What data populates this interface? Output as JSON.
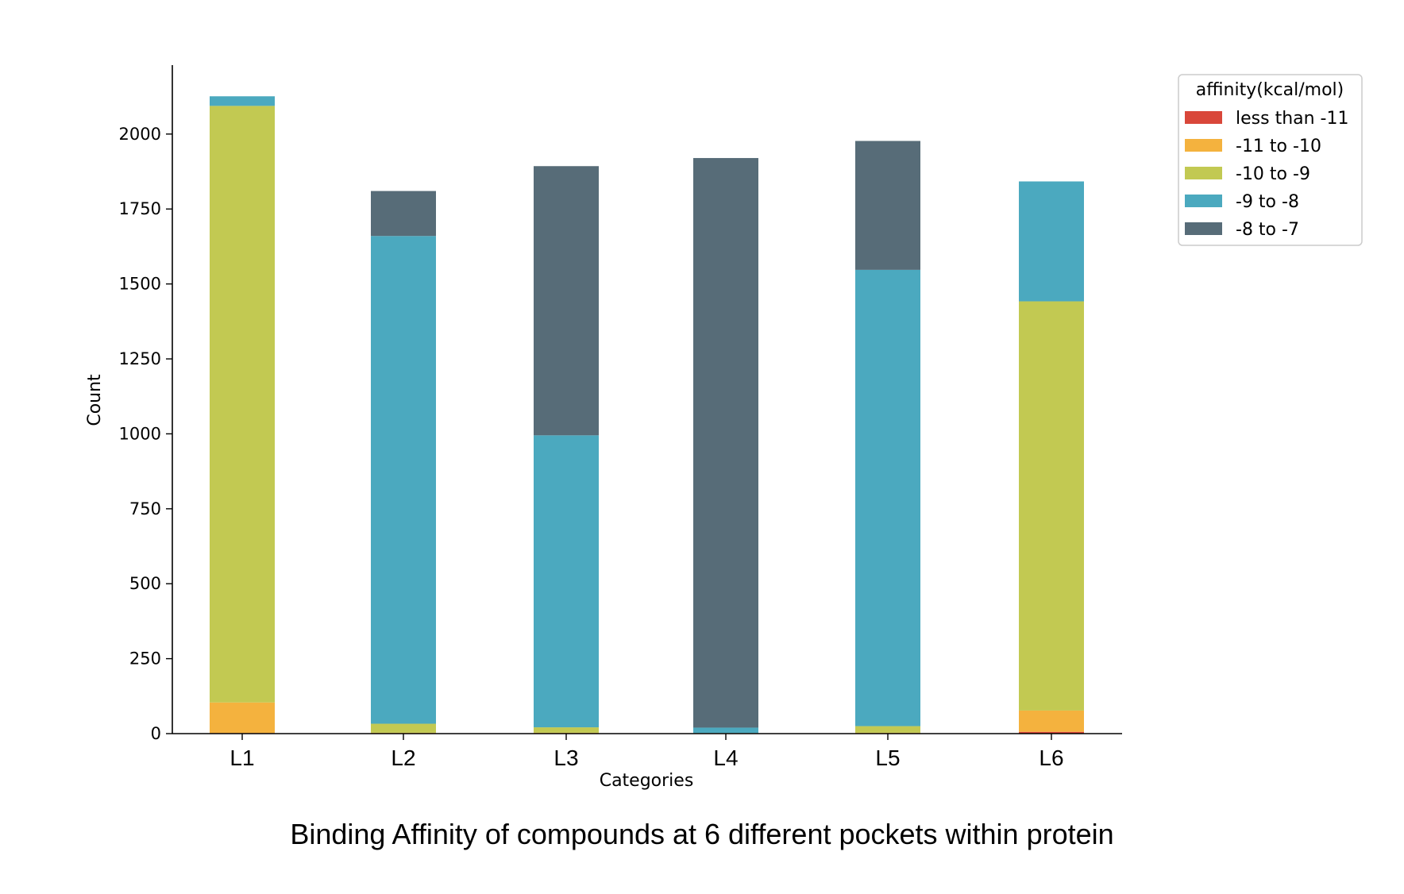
{
  "caption": "Binding Affinity of compounds at 6 different pockets within protein",
  "chart_data": {
    "type": "bar",
    "stacked": true,
    "categories": [
      "L1",
      "L2",
      "L3",
      "L4",
      "L5",
      "L6"
    ],
    "xlabel": "Categories",
    "ylabel": "Count",
    "ylim": [
      0,
      2230
    ],
    "yticks": [
      0,
      250,
      500,
      750,
      1000,
      1250,
      1500,
      1750,
      2000
    ],
    "legend": {
      "title": "affinity(kcal/mol)",
      "placement": "top-right outside"
    },
    "series": [
      {
        "name": "less than -11",
        "color": "#d9473a",
        "values": [
          2,
          1,
          1,
          0,
          1,
          6
        ]
      },
      {
        "name": "-11 to -10",
        "color": "#f4b23e",
        "values": [
          102,
          2,
          2,
          0,
          2,
          71
        ]
      },
      {
        "name": "-10 to -9",
        "color": "#c2c952",
        "values": [
          1990,
          30,
          18,
          2,
          22,
          1365
        ]
      },
      {
        "name": "-9 to -8",
        "color": "#4ba9bf",
        "values": [
          32,
          1627,
          974,
          18,
          1522,
          400
        ]
      },
      {
        "name": "-8 to -7",
        "color": "#576c78",
        "values": [
          0,
          150,
          898,
          1900,
          430,
          0
        ]
      }
    ]
  }
}
